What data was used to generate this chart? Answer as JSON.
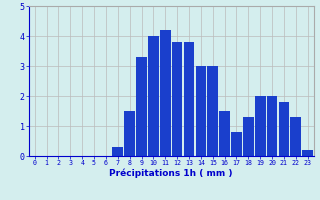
{
  "categories": [
    0,
    1,
    2,
    3,
    4,
    5,
    6,
    7,
    8,
    9,
    10,
    11,
    12,
    13,
    14,
    15,
    16,
    17,
    18,
    19,
    20,
    21,
    22,
    23
  ],
  "values": [
    0,
    0,
    0,
    0,
    0,
    0,
    0,
    0.3,
    1.5,
    3.3,
    4.0,
    4.2,
    3.8,
    3.8,
    3.0,
    3.0,
    1.5,
    0.8,
    1.3,
    2.0,
    2.0,
    1.8,
    1.3,
    0.2
  ],
  "bar_color": "#1a3fcc",
  "background_color": "#d4eeee",
  "grid_color": "#bbbbbb",
  "xlabel": "Précipitations 1h ( mm )",
  "xlabel_color": "#0000cc",
  "tick_color": "#0000cc",
  "ylim": [
    0,
    5
  ],
  "yticks": [
    0,
    1,
    2,
    3,
    4,
    5
  ],
  "figsize": [
    3.2,
    2.0
  ],
  "dpi": 100
}
